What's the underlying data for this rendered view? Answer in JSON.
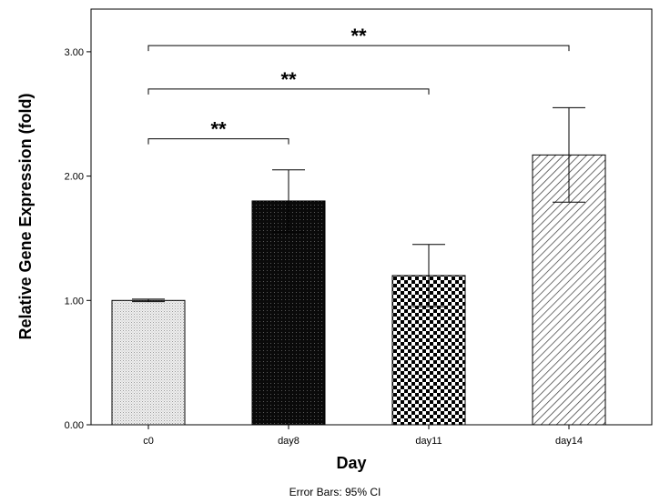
{
  "chart_data": {
    "type": "bar",
    "categories": [
      "c0",
      "day8",
      "day11",
      "day14"
    ],
    "values": [
      1.0,
      1.8,
      1.2,
      2.17
    ],
    "error_low": [
      0.99,
      1.55,
      0.95,
      1.79
    ],
    "error_high": [
      1.01,
      2.05,
      1.45,
      2.55
    ],
    "ylabel": "Relative Gene Expression (fold)",
    "xlabel": "Day",
    "ylim": [
      0,
      3.15
    ],
    "yticks": [
      0,
      1,
      2,
      3
    ],
    "ytick_labels": [
      "0.00",
      "1.00",
      "2.00",
      "3.00"
    ],
    "grid": false,
    "footnote": "Error Bars: 95% CI",
    "patterns": [
      "fine-dots",
      "dense-black-dots",
      "checkerboard",
      "diagonal-hatch"
    ],
    "significance": [
      {
        "from": "c0",
        "to": "day8",
        "label": "**",
        "y": 2.3
      },
      {
        "from": "c0",
        "to": "day11",
        "label": "**",
        "y": 2.7
      },
      {
        "from": "c0",
        "to": "day14",
        "label": "**",
        "y": 3.05
      }
    ]
  }
}
